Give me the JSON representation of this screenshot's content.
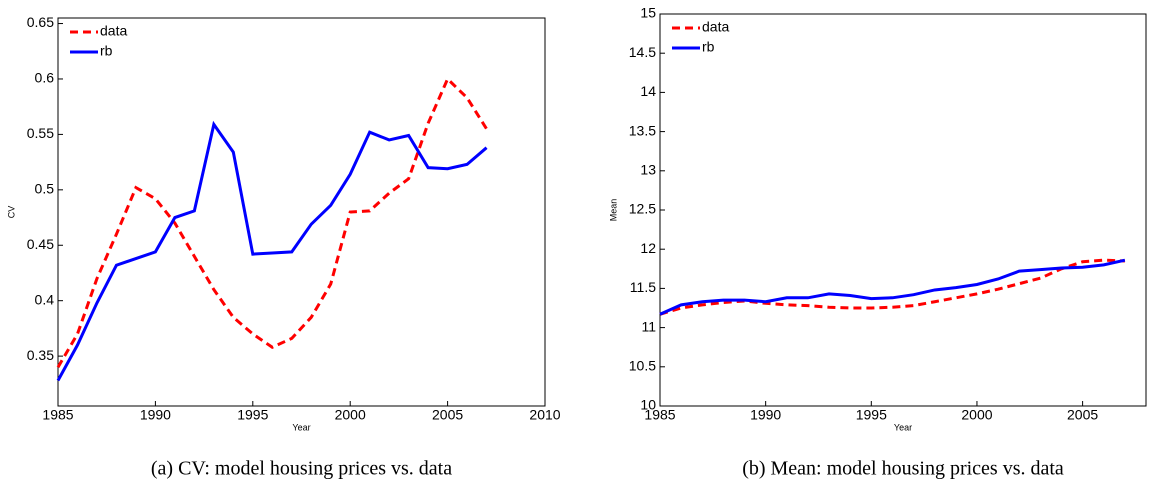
{
  "chart_data": [
    {
      "type": "line",
      "caption": "(a) CV: model housing prices vs. data",
      "xlabel": "Year",
      "ylabel": "CV",
      "x": [
        1985,
        1986,
        1987,
        1988,
        1989,
        1990,
        1991,
        1992,
        1993,
        1994,
        1995,
        1996,
        1997,
        1998,
        1999,
        2000,
        2001,
        2002,
        2003,
        2004,
        2005,
        2006,
        2007
      ],
      "series": [
        {
          "name": "data",
          "color": "#ff0000",
          "dash": true,
          "values": [
            0.34,
            0.37,
            0.42,
            0.46,
            0.502,
            0.492,
            0.47,
            0.44,
            0.41,
            0.385,
            0.37,
            0.358,
            0.366,
            0.385,
            0.415,
            0.48,
            0.481,
            0.497,
            0.51,
            0.56,
            0.6,
            0.583,
            0.555
          ]
        },
        {
          "name": "rb",
          "color": "#0000ff",
          "dash": false,
          "values": [
            0.328,
            0.36,
            0.398,
            0.432,
            0.438,
            0.444,
            0.475,
            0.481,
            0.559,
            0.534,
            0.442,
            0.443,
            0.444,
            0.469,
            0.486,
            0.514,
            0.552,
            0.545,
            0.549,
            0.52,
            0.519,
            0.523,
            0.538
          ]
        }
      ],
      "xlim": [
        1985,
        2010
      ],
      "xticks": [
        1985,
        1990,
        1995,
        2000,
        2005,
        2010
      ],
      "ylim": [
        0.305,
        0.655
      ],
      "yticks": [
        0.35,
        0.4,
        0.45,
        0.5,
        0.55,
        0.6,
        0.65
      ],
      "legend": "upper left"
    },
    {
      "type": "line",
      "caption": "(b) Mean: model housing prices vs. data",
      "xlabel": "Year",
      "ylabel": "Mean",
      "x": [
        1985,
        1986,
        1987,
        1988,
        1989,
        1990,
        1991,
        1992,
        1993,
        1994,
        1995,
        1996,
        1997,
        1998,
        1999,
        2000,
        2001,
        2002,
        2003,
        2004,
        2005,
        2006,
        2007
      ],
      "series": [
        {
          "name": "data",
          "color": "#ff0000",
          "dash": true,
          "values": [
            11.17,
            11.25,
            11.29,
            11.32,
            11.34,
            11.31,
            11.29,
            11.28,
            11.26,
            11.25,
            11.25,
            11.26,
            11.28,
            11.33,
            11.38,
            11.43,
            11.49,
            11.56,
            11.63,
            11.75,
            11.84,
            11.86,
            11.85
          ]
        },
        {
          "name": "rb",
          "color": "#0000ff",
          "dash": false,
          "values": [
            11.17,
            11.29,
            11.33,
            11.35,
            11.35,
            11.33,
            11.38,
            11.38,
            11.43,
            11.41,
            11.37,
            11.38,
            11.42,
            11.48,
            11.51,
            11.55,
            11.62,
            11.72,
            11.74,
            11.76,
            11.77,
            11.8,
            11.86
          ]
        }
      ],
      "xlim": [
        1985,
        2008
      ],
      "xticks": [
        1985,
        1990,
        1995,
        2000,
        2005
      ],
      "ylim": [
        10,
        15
      ],
      "yticks": [
        10,
        10.5,
        11,
        11.5,
        12,
        12.5,
        13,
        13.5,
        14,
        14.5,
        15
      ],
      "legend": "upper left"
    }
  ]
}
